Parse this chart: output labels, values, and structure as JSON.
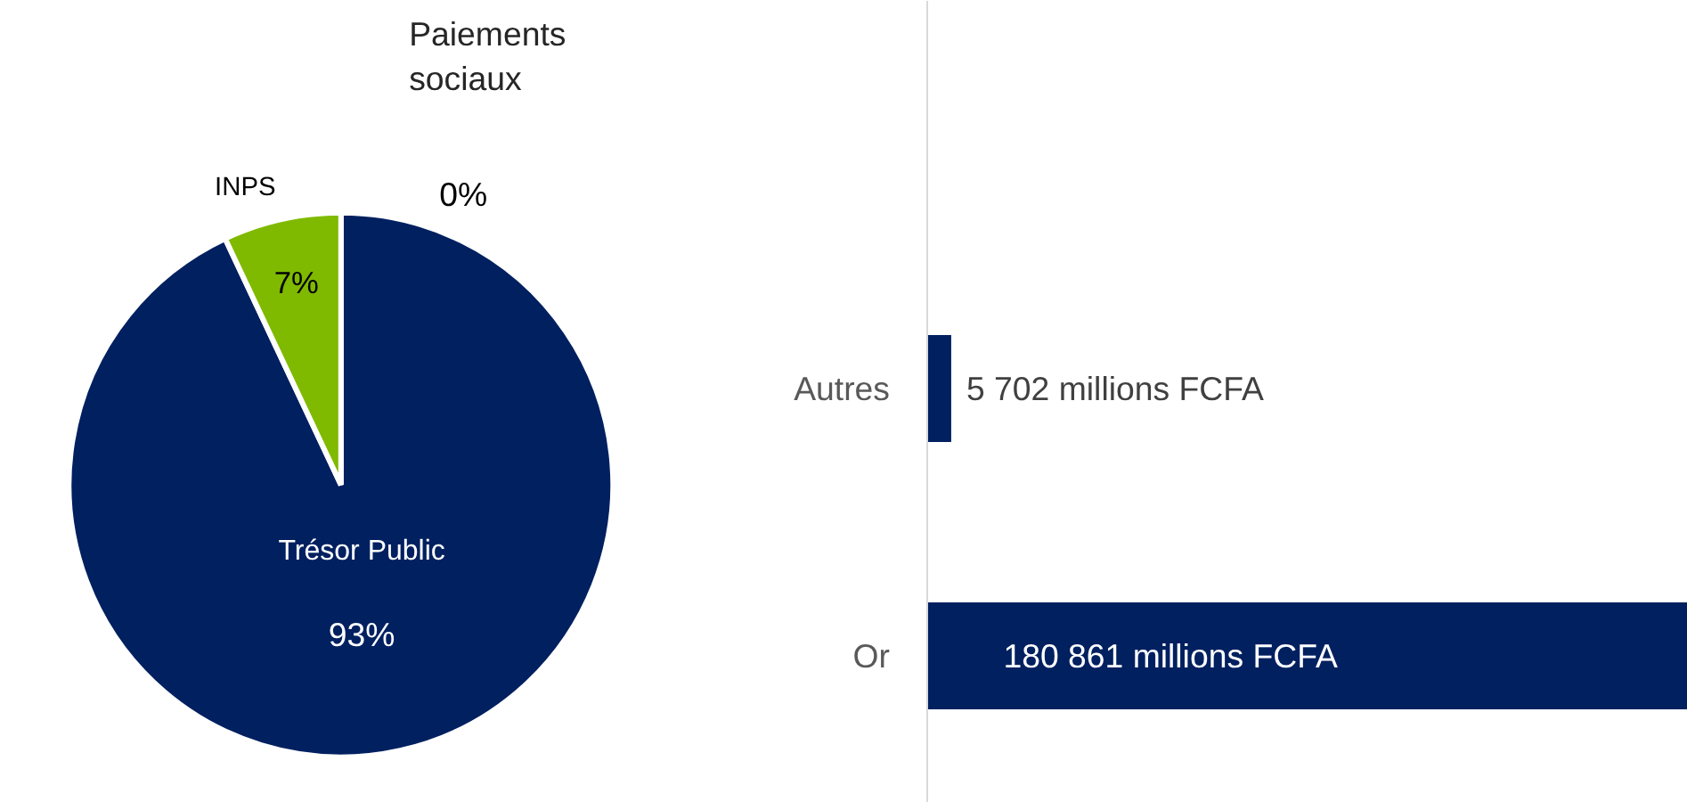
{
  "chart_data": [
    {
      "type": "pie",
      "categories": [
        "Trésor Public",
        "INPS",
        "Paiements sociaux"
      ],
      "values": [
        93,
        7,
        0
      ],
      "colors": [
        "#002060",
        "#7fba00",
        "#a5a5a5"
      ],
      "value_labels": [
        "93%",
        "7%",
        "0%"
      ]
    },
    {
      "type": "bar",
      "orientation": "horizontal",
      "categories": [
        "Autres",
        "Or"
      ],
      "values": [
        5702,
        180861
      ],
      "color": "#002060",
      "value_labels": [
        "5 702 millions FCFA",
        "180 861 millions FCFA"
      ]
    }
  ]
}
